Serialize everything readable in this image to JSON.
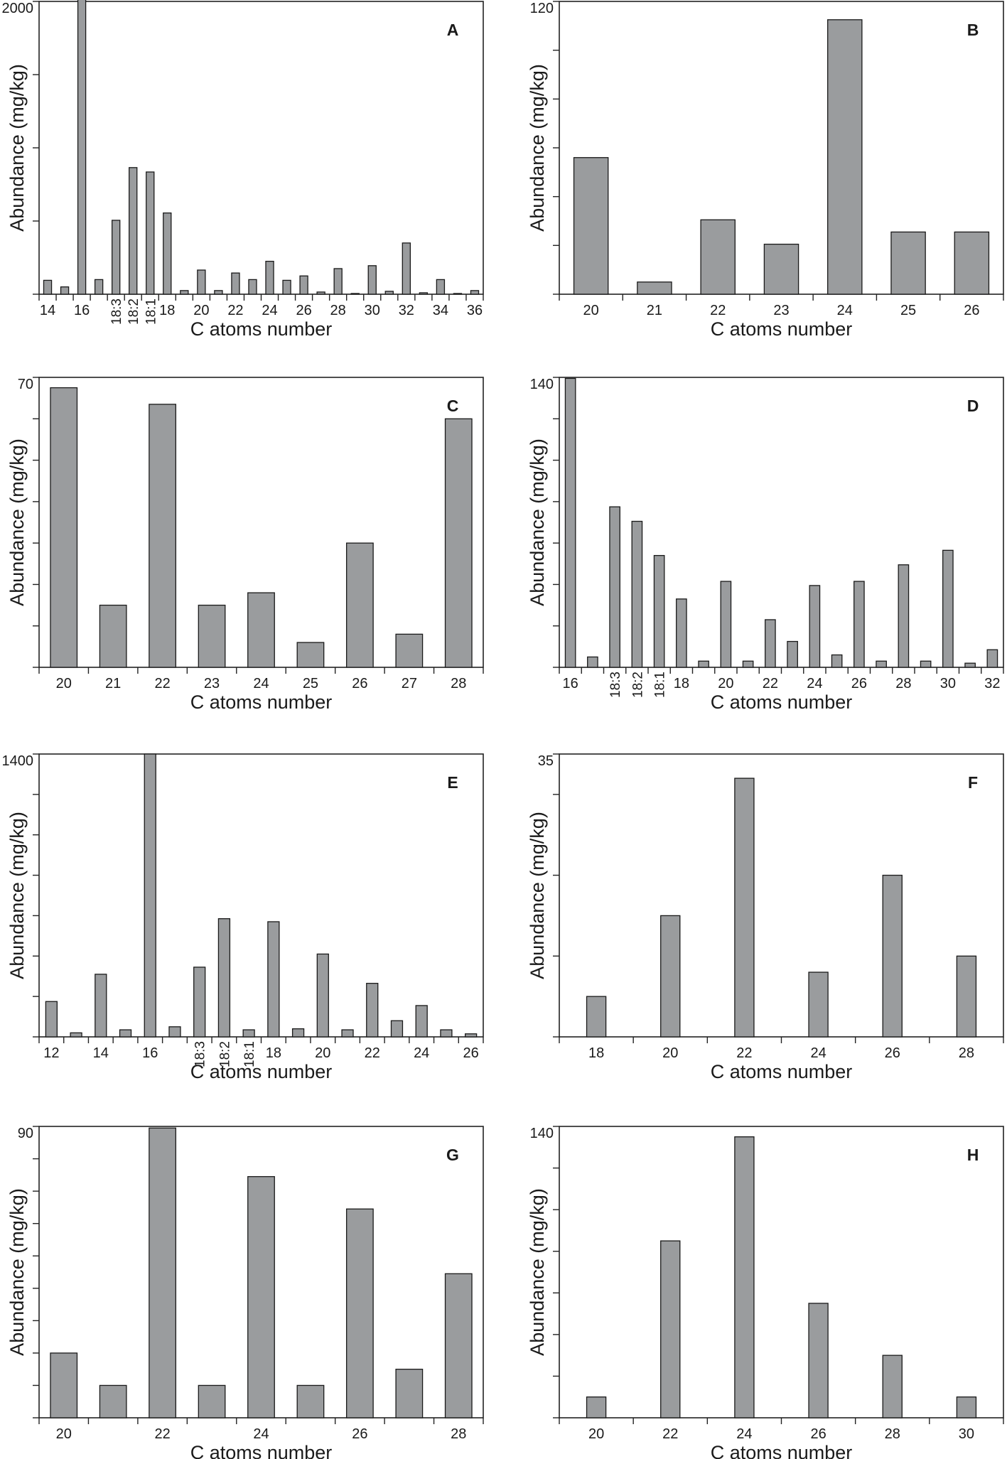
{
  "figure": {
    "caption_hidden": ""
  },
  "chart_data": [
    {
      "type": "bar",
      "panel_label": "A",
      "ylabel": "Abundance (mg/kg)",
      "xlabel": "C atoms number",
      "ylim": [
        0,
        2000
      ],
      "y_ticks": [
        0,
        500,
        1000,
        1500,
        2000
      ],
      "y_tick_labels": [
        "2000"
      ],
      "categories": [
        "14",
        "15",
        "16",
        "17",
        "18:3",
        "18:2",
        "18:1",
        "18",
        "19",
        "20",
        "21",
        "22",
        "23",
        "24",
        "25",
        "26",
        "27",
        "28",
        "29",
        "30",
        "31",
        "32",
        "33",
        "34",
        "35",
        "36"
      ],
      "tick_labels": [
        "14",
        "",
        "16",
        "",
        "18:3",
        "18:2",
        "18:1",
        "18",
        "",
        "20",
        "",
        "22",
        "",
        "24",
        "",
        "26",
        "",
        "28",
        "",
        "30",
        "",
        "32",
        "",
        "34",
        "",
        "36"
      ],
      "rotated": [
        "18:3",
        "18:2",
        "18:1"
      ],
      "values": [
        95,
        50,
        2090,
        100,
        505,
        865,
        835,
        555,
        25,
        165,
        25,
        145,
        100,
        225,
        95,
        125,
        15,
        175,
        5,
        195,
        20,
        350,
        10,
        100,
        5,
        25
      ],
      "bar_width": "narrow"
    },
    {
      "type": "bar",
      "panel_label": "B",
      "ylabel": "Abundance (mg/kg)",
      "xlabel": "C atoms number",
      "ylim": [
        0,
        120
      ],
      "y_ticks": [
        0,
        20,
        40,
        60,
        80,
        100,
        120
      ],
      "y_tick_labels": [
        "120"
      ],
      "categories": [
        "20",
        "21",
        "22",
        "23",
        "24",
        "25",
        "26"
      ],
      "tick_labels": [
        "20",
        "21",
        "22",
        "23",
        "24",
        "25",
        "26"
      ],
      "values": [
        56,
        5,
        30.5,
        20.5,
        112.5,
        25.5,
        25.5
      ],
      "bar_width": "wide"
    },
    {
      "type": "bar",
      "panel_label": "C",
      "ylabel": "Abundance (mg/kg)",
      "xlabel": "C atoms number",
      "ylim": [
        0,
        70
      ],
      "y_ticks": [
        0,
        10,
        20,
        30,
        40,
        50,
        60,
        70
      ],
      "y_tick_labels": [
        "70"
      ],
      "categories": [
        "20",
        "21",
        "22",
        "23",
        "24",
        "25",
        "26",
        "27",
        "28"
      ],
      "tick_labels": [
        "20",
        "21",
        "22",
        "23",
        "24",
        "25",
        "26",
        "27",
        "28"
      ],
      "values": [
        67.5,
        15,
        63.5,
        15,
        18,
        6,
        30,
        8,
        60
      ],
      "bar_width": "wide"
    },
    {
      "type": "bar",
      "panel_label": "D",
      "ylabel": "Abundance (mg/kg)",
      "xlabel": "C atoms number",
      "ylim": [
        0,
        140
      ],
      "y_ticks": [
        0,
        20,
        40,
        60,
        80,
        100,
        120,
        140
      ],
      "y_tick_labels": [
        "140"
      ],
      "categories": [
        "16",
        "17",
        "18:3",
        "18:2",
        "18:1",
        "18",
        "19",
        "20",
        "21",
        "22",
        "23",
        "24",
        "25",
        "26",
        "27",
        "28",
        "29",
        "30",
        "31",
        "32"
      ],
      "tick_labels": [
        "16",
        "",
        "18:3",
        "18:2",
        "18:1",
        "18",
        "",
        "20",
        "",
        "22",
        "",
        "24",
        "",
        "26",
        "",
        "28",
        "",
        "30",
        "",
        "32"
      ],
      "rotated": [
        "18:3",
        "18:2",
        "18:1"
      ],
      "values": [
        139.5,
        5,
        77.5,
        70.5,
        54,
        33,
        3,
        41.5,
        3,
        23,
        12.5,
        39.5,
        6,
        41.5,
        3,
        49.5,
        3,
        56.5,
        2,
        8.5
      ],
      "bar_width": "narrow"
    },
    {
      "type": "bar",
      "panel_label": "E",
      "ylabel": "Abundance (mg/kg)",
      "xlabel": "C atoms number",
      "ylim": [
        0,
        1400
      ],
      "y_ticks": [
        0,
        200,
        400,
        600,
        800,
        1000,
        1200,
        1400
      ],
      "y_tick_labels": [
        "1400"
      ],
      "categories": [
        "12",
        "13",
        "14",
        "15",
        "16",
        "17",
        "18:3",
        "18:2",
        "18:1",
        "18",
        "19",
        "20",
        "21",
        "22",
        "23",
        "24",
        "25",
        "26"
      ],
      "tick_labels": [
        "12",
        "",
        "14",
        "",
        "16",
        "",
        "18:3",
        "18:2",
        "18:1",
        "18",
        "",
        "20",
        "",
        "22",
        "",
        "24",
        "",
        "26"
      ],
      "rotated": [
        "18:3",
        "18:2",
        "18:1"
      ],
      "values": [
        175,
        20,
        310,
        35,
        1400,
        50,
        345,
        585,
        35,
        570,
        40,
        410,
        35,
        265,
        80,
        155,
        35,
        15
      ],
      "bar_width": "narrow"
    },
    {
      "type": "bar",
      "panel_label": "F",
      "ylabel": "Abundance (mg/kg)",
      "xlabel": "C atoms number",
      "ylim": [
        0,
        35
      ],
      "y_ticks": [
        0,
        10,
        20,
        30,
        35
      ],
      "y_tick_labels": [
        "35"
      ],
      "categories": [
        "18",
        "20",
        "22",
        "24",
        "26",
        "28"
      ],
      "tick_labels": [
        "18",
        "20",
        "22",
        "24",
        "26",
        "28"
      ],
      "values": [
        5,
        15,
        32,
        8,
        20,
        10
      ],
      "bar_width": "medium"
    },
    {
      "type": "bar",
      "panel_label": "G",
      "ylabel": "Abundance (mg/kg)",
      "xlabel": "C atoms number",
      "ylim": [
        0,
        90
      ],
      "y_ticks": [
        0,
        10,
        20,
        30,
        40,
        50,
        60,
        70,
        80,
        90
      ],
      "y_tick_labels": [
        "90"
      ],
      "categories": [
        "20",
        "21",
        "22",
        "23",
        "24",
        "25",
        "26",
        "27",
        "28"
      ],
      "tick_labels": [
        "20",
        "",
        "22",
        "",
        "24",
        "",
        "26",
        "",
        "28"
      ],
      "values": [
        20,
        10,
        89.5,
        10,
        74.5,
        10,
        64.5,
        15,
        44.5
      ],
      "bar_width": "wide"
    },
    {
      "type": "bar",
      "panel_label": "H",
      "ylabel": "Abundance (mg/kg)",
      "xlabel": "C atoms number",
      "ylim": [
        0,
        140
      ],
      "y_ticks": [
        0,
        20,
        40,
        60,
        80,
        100,
        120,
        140
      ],
      "y_tick_labels": [
        "140"
      ],
      "categories": [
        "20",
        "22",
        "24",
        "26",
        "28",
        "30"
      ],
      "tick_labels": [
        "20",
        "22",
        "24",
        "26",
        "28",
        "30"
      ],
      "values": [
        10,
        85,
        135,
        55,
        30,
        10
      ],
      "bar_width": "medium"
    }
  ]
}
